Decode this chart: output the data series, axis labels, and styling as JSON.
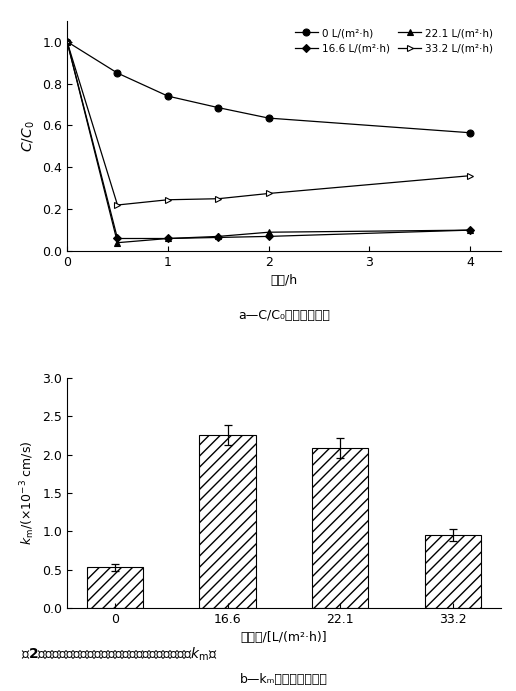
{
  "line_chart": {
    "series": [
      {
        "label": "0 L/(m²·h)",
        "x": [
          0,
          0.5,
          1,
          1.5,
          2,
          4
        ],
        "y": [
          1.0,
          0.85,
          0.74,
          0.685,
          0.635,
          0.565
        ],
        "marker": "o",
        "mfc": "black",
        "mec": "black",
        "line_color": "black",
        "marker_size": 5
      },
      {
        "label": "16.6 L/(m²·h)",
        "x": [
          0,
          0.5,
          1,
          1.5,
          2,
          4
        ],
        "y": [
          1.0,
          0.06,
          0.06,
          0.065,
          0.07,
          0.1
        ],
        "marker": "D",
        "mfc": "black",
        "mec": "black",
        "line_color": "black",
        "marker_size": 4
      },
      {
        "label": "22.1 L/(m²·h)",
        "x": [
          0,
          0.5,
          1,
          1.5,
          2,
          4
        ],
        "y": [
          1.0,
          0.04,
          0.06,
          0.07,
          0.09,
          0.1
        ],
        "marker": "^",
        "mfc": "black",
        "mec": "black",
        "line_color": "black",
        "marker_size": 5
      },
      {
        "label": "33.2 L/(m²·h)",
        "x": [
          0,
          0.5,
          1,
          1.5,
          2,
          4
        ],
        "y": [
          1.0,
          0.22,
          0.245,
          0.25,
          0.275,
          0.36
        ],
        "marker": ">",
        "mfc": "white",
        "mec": "black",
        "line_color": "black",
        "marker_size": 5
      }
    ],
    "xlabel": "时间/h",
    "ylabel": "C/C₀",
    "xlim": [
      0,
      4.3
    ],
    "ylim": [
      0,
      1.1
    ],
    "xticks": [
      0,
      1,
      2,
      3,
      4
    ],
    "yticks": [
      0,
      0.2,
      0.4,
      0.6,
      0.8,
      1.0
    ],
    "subtitle_a": "a—C/C₀随时间的变化"
  },
  "bar_chart": {
    "categories": [
      "0",
      "16.6",
      "22.1",
      "33.2"
    ],
    "values": [
      0.53,
      2.25,
      2.08,
      0.95
    ],
    "errors": [
      0.05,
      0.13,
      0.13,
      0.08
    ],
    "xlabel": "膜通量/[L/(m²·h)]",
    "ylabel_pre": "kₘ/(×10",
    "ylabel_exp": "-3",
    "ylabel_post": " cm/s)",
    "ylim": [
      0,
      3.0
    ],
    "yticks": [
      0,
      0.5,
      1.0,
      1.5,
      2.0,
      2.5,
      3.0
    ],
    "bar_color": "white",
    "hatch": "///",
    "edgecolor": "black",
    "subtitle_b": "b—kₘ随膜通量的变化"
  },
  "caption_fig": "图2　不同膜通量下的磷去除效果和传质－反应系数（kₘ）"
}
